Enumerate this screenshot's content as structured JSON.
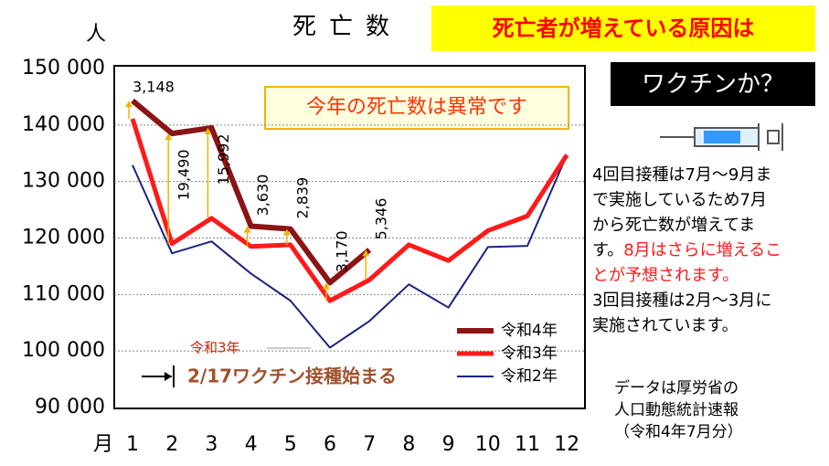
{
  "chart_data": {
    "type": "line",
    "title": "死亡数",
    "y_label": "人",
    "x_label": "月",
    "categories": [
      "1",
      "2",
      "3",
      "4",
      "5",
      "6",
      "7",
      "8",
      "9",
      "10",
      "11",
      "12"
    ],
    "series": [
      {
        "name": "令和4年",
        "color": "#8b1414",
        "width": 6,
        "values": [
          144300,
          138500,
          139500,
          122100,
          121600,
          112100,
          117900,
          null,
          null,
          null,
          null,
          null
        ]
      },
      {
        "name": "令和3年",
        "color": "#ff1a1a",
        "width": 5,
        "values": [
          141100,
          119000,
          123500,
          118500,
          118800,
          108900,
          112600,
          118800,
          116000,
          121300,
          123900,
          134700
        ]
      },
      {
        "name": "令和2年",
        "color": "#1a237e",
        "width": 2,
        "values": [
          132900,
          117300,
          119400,
          113700,
          108900,
          100600,
          105300,
          111800,
          107700,
          118400,
          118600,
          134700
        ]
      }
    ],
    "differences": {
      "color": "#f0b400",
      "values": [
        3148,
        19490,
        15992,
        3630,
        2839,
        3170,
        5346
      ],
      "value_labels": [
        "3,148",
        "19,490",
        "15,992",
        "3,630",
        "2,839",
        "3,170",
        "5,346"
      ]
    },
    "ylim": [
      90000,
      150000
    ],
    "yticks": [
      {
        "value": 90000,
        "label": "90 000"
      },
      {
        "value": 100000,
        "label": "100 000"
      },
      {
        "value": 110000,
        "label": "110 000"
      },
      {
        "value": 120000,
        "label": "120 000"
      },
      {
        "value": 130000,
        "label": "130 000"
      },
      {
        "value": 140000,
        "label": "140 000"
      },
      {
        "value": 150000,
        "label": "150 000"
      }
    ],
    "grid": true,
    "legend": "lower right",
    "annotations": {
      "headline": "死亡者が増えている原因は",
      "question": "ワクチンか？",
      "callout": "今年の死亡数は異常です",
      "vaccine_year": "令和3年",
      "vaccine_start": "2/17ワクチン接種始まる",
      "note_lines": [
        [
          {
            "text": "4回目接種は7月～9月ま",
            "color": "#000000"
          }
        ],
        [
          {
            "text": "で実施しているため7月",
            "color": "#000000"
          }
        ],
        [
          {
            "text": "から死亡数が増えてま",
            "color": "#000000"
          }
        ],
        [
          {
            "text": "す。",
            "color": "#000000"
          },
          {
            "text": "8月はさらに増えるこ",
            "color": "#ff1a1a"
          }
        ],
        [
          {
            "text": "とが予想されます。",
            "color": "#ff1a1a"
          }
        ],
        [
          {
            "text": "3回目接種は2月～3月に",
            "color": "#000000"
          }
        ],
        [
          {
            "text": "実施されています。",
            "color": "#000000"
          }
        ]
      ],
      "source_lines": [
        "データは厚労省の",
        "人口動態統計速報",
        "（令和4年7月分）"
      ]
    }
  }
}
